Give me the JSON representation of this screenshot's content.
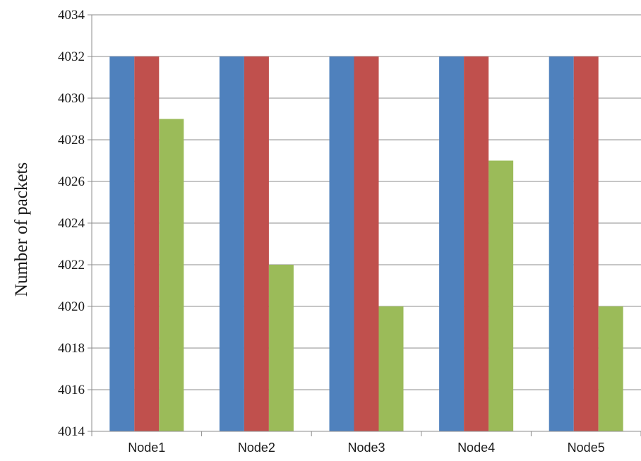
{
  "chart_data": {
    "type": "bar",
    "categories": [
      "Node1",
      "Node2",
      "Node3",
      "Node4",
      "Node5"
    ],
    "series": [
      {
        "values": [
          4032,
          4032,
          4032,
          4032,
          4032
        ],
        "color": "#4f81bd"
      },
      {
        "values": [
          4032,
          4032,
          4032,
          4032,
          4032
        ],
        "color": "#c0504d"
      },
      {
        "values": [
          4029,
          4022,
          4020,
          4027,
          4020
        ],
        "color": "#9bbb59"
      }
    ],
    "title": "",
    "xlabel": "",
    "ylabel": "Number of packets",
    "ylim": [
      4014,
      4034
    ],
    "yticks": [
      "4014",
      "4016",
      "4018",
      "4020",
      "4022",
      "4024",
      "4026",
      "4028",
      "4030",
      "4032",
      "4034"
    ],
    "grid": true,
    "legend": "none"
  }
}
